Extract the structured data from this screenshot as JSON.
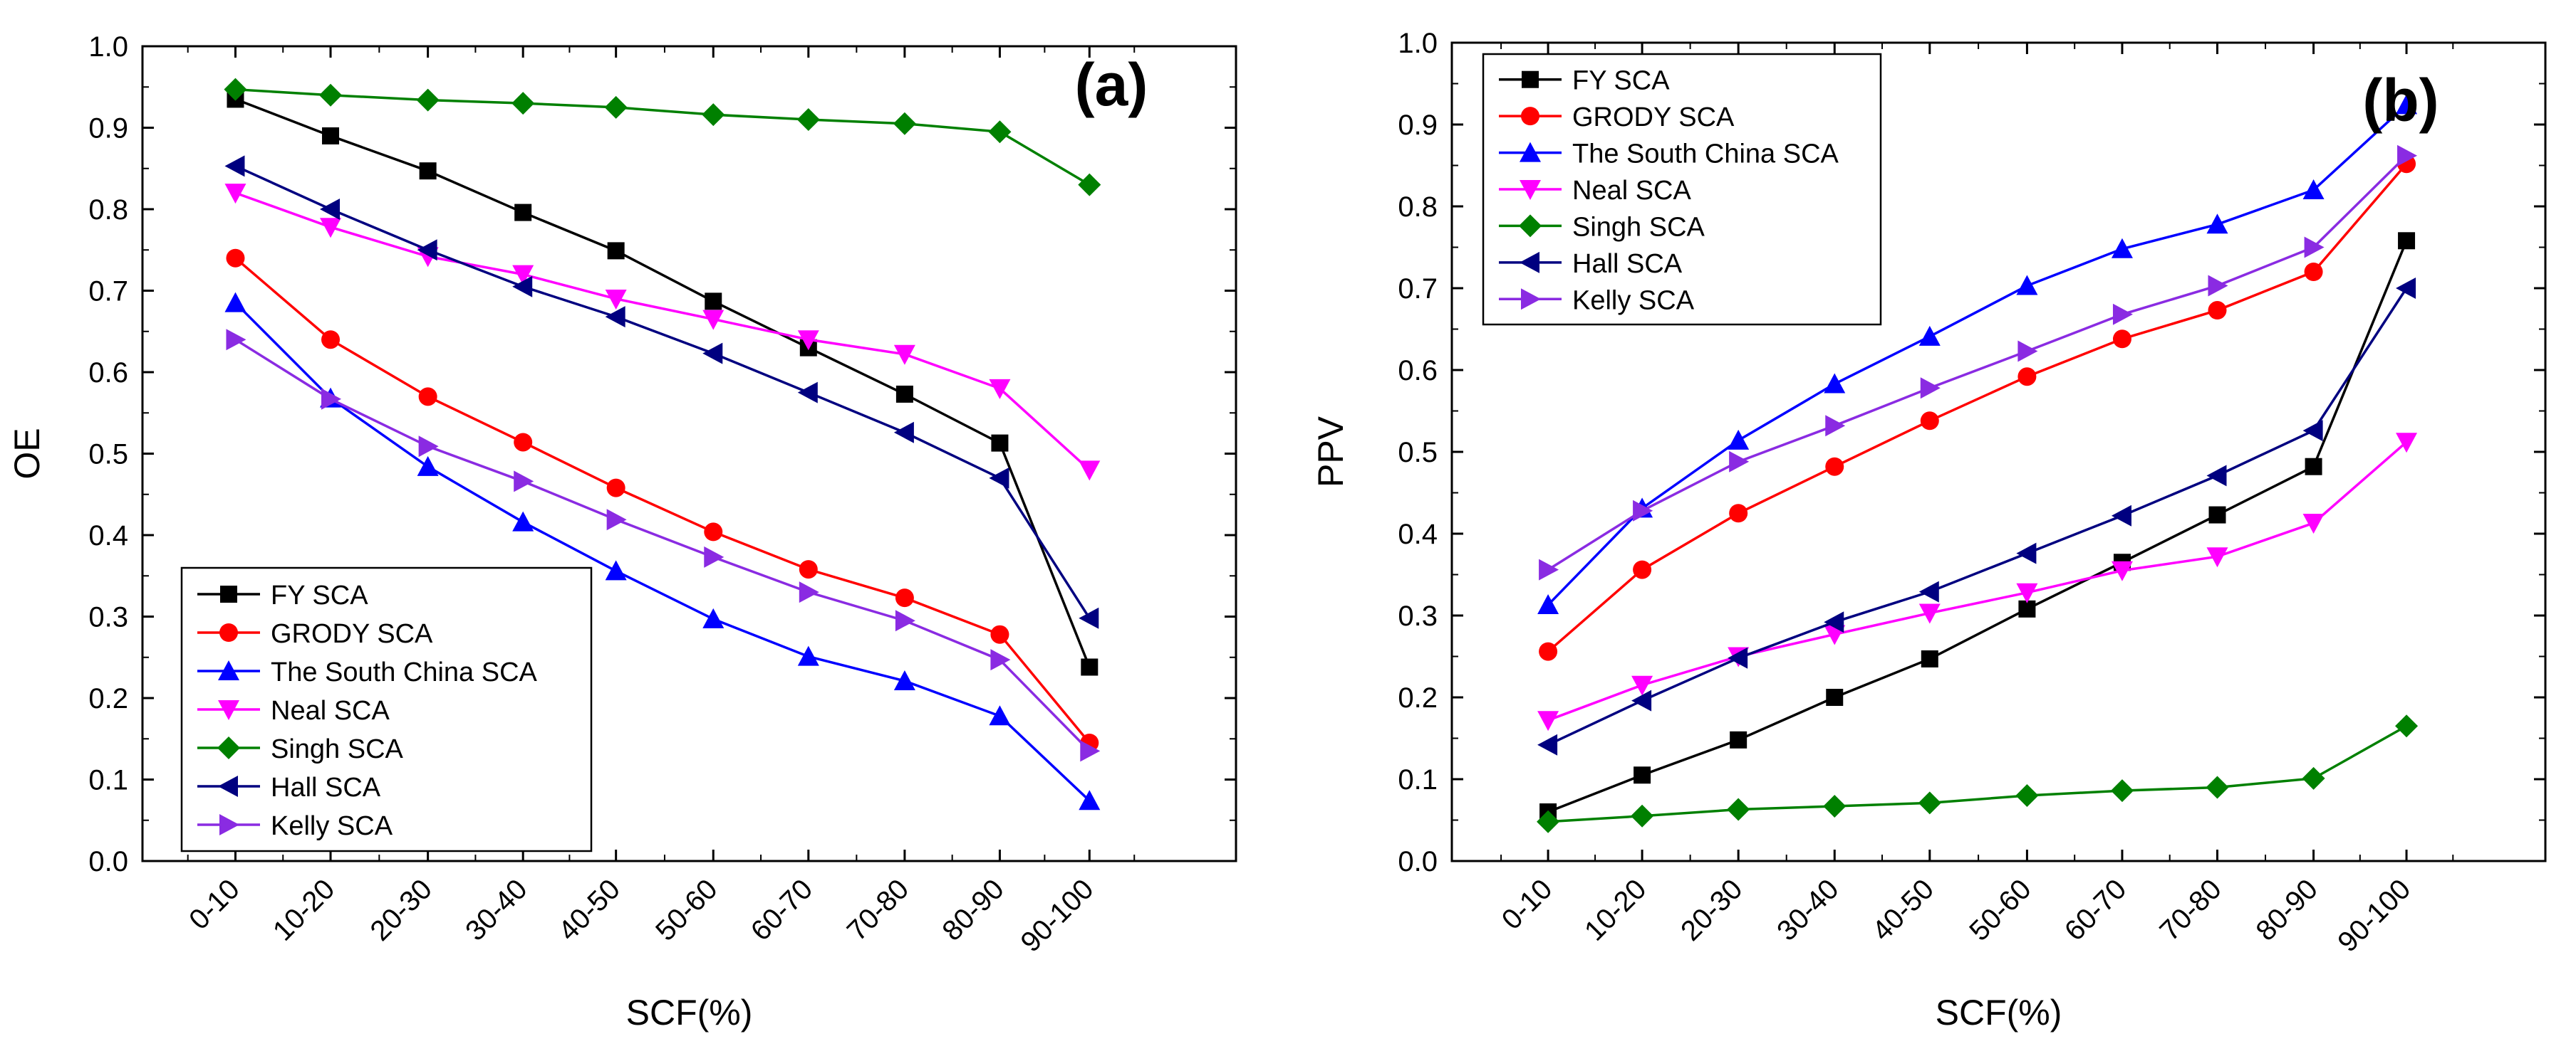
{
  "chart_data": [
    {
      "type": "line",
      "panel_label": "(a)",
      "xlabel": "SCF(%)",
      "ylabel": "OE",
      "ylim": [
        0,
        1.0
      ],
      "yticks": [
        "0.0",
        "0.1",
        "0.2",
        "0.3",
        "0.4",
        "0.5",
        "0.6",
        "0.7",
        "0.8",
        "0.9",
        "1.0"
      ],
      "categories": [
        "0-10",
        "10-20",
        "20-30",
        "30-40",
        "40-50",
        "50-60",
        "60-70",
        "70-80",
        "80-90",
        "90-100"
      ],
      "legend_position": "bottom-left",
      "series": [
        {
          "name": "FY SCA",
          "color": "#000000",
          "marker": "square",
          "values": [
            0.935,
            0.89,
            0.847,
            0.796,
            0.749,
            0.687,
            0.63,
            0.573,
            0.513,
            0.238
          ]
        },
        {
          "name": "GRODY SCA",
          "color": "#ff0000",
          "marker": "circle",
          "values": [
            0.74,
            0.64,
            0.57,
            0.514,
            0.458,
            0.404,
            0.358,
            0.323,
            0.278,
            0.145
          ]
        },
        {
          "name": "The South China SCA",
          "color": "#0000ff",
          "marker": "triangle-up",
          "values": [
            0.685,
            0.568,
            0.484,
            0.416,
            0.356,
            0.297,
            0.251,
            0.221,
            0.178,
            0.074
          ]
        },
        {
          "name": "Neal SCA",
          "color": "#ff00ff",
          "marker": "triangle-down",
          "values": [
            0.82,
            0.778,
            0.742,
            0.72,
            0.69,
            0.665,
            0.64,
            0.622,
            0.58,
            0.48
          ]
        },
        {
          "name": "Singh SCA",
          "color": "#008000",
          "marker": "diamond",
          "values": [
            0.947,
            0.94,
            0.934,
            0.93,
            0.925,
            0.916,
            0.91,
            0.905,
            0.895,
            0.83
          ]
        },
        {
          "name": "Hall SCA",
          "color": "#000080",
          "marker": "triangle-left",
          "values": [
            0.853,
            0.8,
            0.75,
            0.705,
            0.668,
            0.623,
            0.575,
            0.526,
            0.47,
            0.298
          ]
        },
        {
          "name": "Kelly SCA",
          "color": "#8a2be2",
          "marker": "triangle-right",
          "values": [
            0.64,
            0.567,
            0.509,
            0.466,
            0.419,
            0.373,
            0.33,
            0.295,
            0.247,
            0.135
          ]
        }
      ]
    },
    {
      "type": "line",
      "panel_label": "(b)",
      "xlabel": "SCF(%)",
      "ylabel": "PPV",
      "ylim": [
        0,
        1.0
      ],
      "yticks": [
        "0.0",
        "0.1",
        "0.2",
        "0.3",
        "0.4",
        "0.5",
        "0.6",
        "0.7",
        "0.8",
        "0.9",
        "1.0"
      ],
      "categories": [
        "0-10",
        "10-20",
        "20-30",
        "30-40",
        "40-50",
        "50-60",
        "60-70",
        "70-80",
        "80-90",
        "90-100"
      ],
      "legend_position": "top-left",
      "series": [
        {
          "name": "FY SCA",
          "color": "#000000",
          "marker": "square",
          "values": [
            0.06,
            0.105,
            0.148,
            0.2,
            0.247,
            0.308,
            0.365,
            0.423,
            0.482,
            0.758
          ]
        },
        {
          "name": "GRODY SCA",
          "color": "#ff0000",
          "marker": "circle",
          "values": [
            0.256,
            0.356,
            0.425,
            0.482,
            0.538,
            0.592,
            0.638,
            0.673,
            0.72,
            0.852
          ]
        },
        {
          "name": "The South China SCA",
          "color": "#0000ff",
          "marker": "triangle-up",
          "values": [
            0.313,
            0.431,
            0.514,
            0.583,
            0.641,
            0.703,
            0.748,
            0.778,
            0.82,
            0.924
          ]
        },
        {
          "name": "Neal SCA",
          "color": "#ff00ff",
          "marker": "triangle-down",
          "values": [
            0.172,
            0.215,
            0.25,
            0.277,
            0.303,
            0.328,
            0.355,
            0.372,
            0.413,
            0.512
          ]
        },
        {
          "name": "Singh SCA",
          "color": "#008000",
          "marker": "diamond",
          "values": [
            0.048,
            0.055,
            0.063,
            0.067,
            0.071,
            0.08,
            0.086,
            0.09,
            0.101,
            0.165
          ]
        },
        {
          "name": "Hall SCA",
          "color": "#000080",
          "marker": "triangle-left",
          "values": [
            0.142,
            0.196,
            0.248,
            0.292,
            0.329,
            0.376,
            0.422,
            0.471,
            0.526,
            0.7
          ]
        },
        {
          "name": "Kelly SCA",
          "color": "#8a2be2",
          "marker": "triangle-right",
          "values": [
            0.356,
            0.428,
            0.488,
            0.532,
            0.578,
            0.623,
            0.668,
            0.703,
            0.75,
            0.862
          ]
        }
      ]
    }
  ]
}
